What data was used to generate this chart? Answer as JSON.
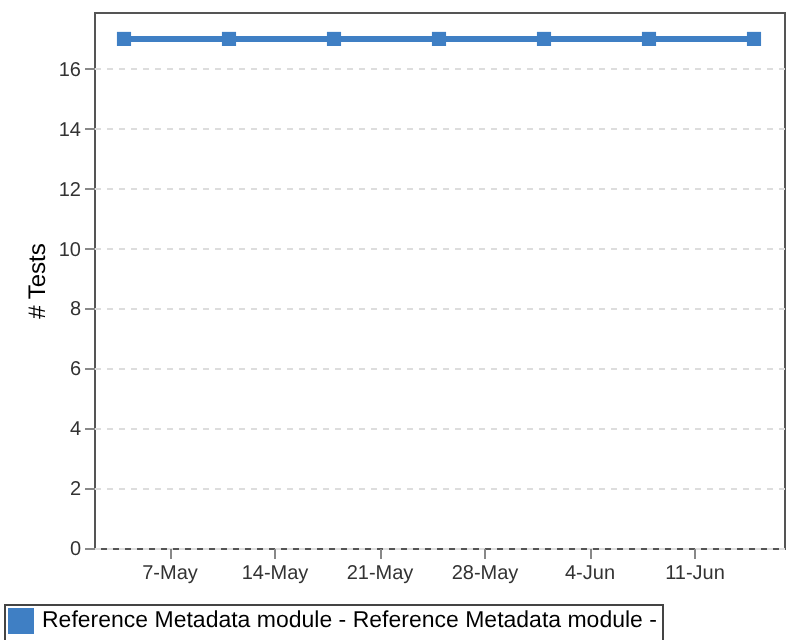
{
  "chart_data": {
    "type": "line",
    "ylabel": "# Tests",
    "x": [
      "--05-04",
      "--05-11",
      "--05-18",
      "--05-25",
      "--06-01",
      "--06-08",
      "--06-15"
    ],
    "series": [
      {
        "name": "Reference Metadata module - Reference Metadata module -",
        "color": "#3f7fc4",
        "values": [
          17,
          17,
          17,
          17,
          17,
          17,
          17
        ]
      }
    ],
    "xlim": [
      "--05-02",
      "--06-17"
    ],
    "xticks": [
      {
        "value": "--05-07",
        "label": "7-May"
      },
      {
        "value": "--05-14",
        "label": "14-May"
      },
      {
        "value": "--05-21",
        "label": "21-May"
      },
      {
        "value": "--05-28",
        "label": "28-May"
      },
      {
        "value": "--06-04",
        "label": "4-Jun"
      },
      {
        "value": "--06-11",
        "label": "11-Jun"
      }
    ],
    "ylim": [
      0,
      17.9
    ],
    "yticks": [
      0,
      2,
      4,
      6,
      8,
      10,
      12,
      14,
      16
    ],
    "grid": "y",
    "legend": "bottom",
    "marker": "square",
    "line_style": "solid"
  }
}
